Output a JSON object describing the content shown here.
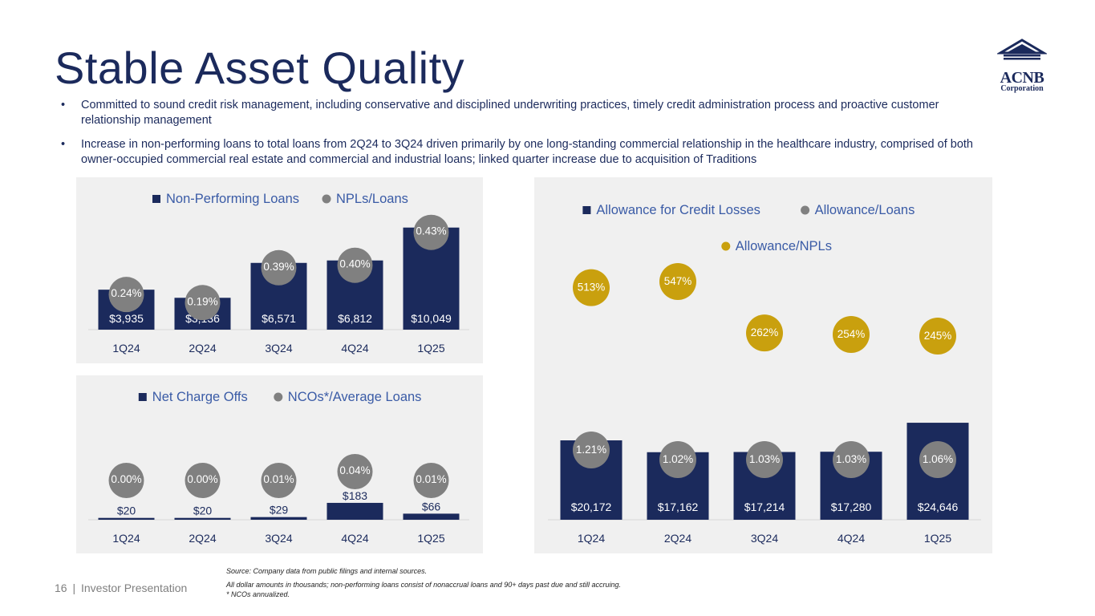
{
  "title": "Stable Asset Quality",
  "logo": {
    "name": "ACNB",
    "sub": "Corporation"
  },
  "bullets": [
    "Committed to sound credit risk management, including conservative and disciplined underwriting practices, timely credit administration process and proactive customer relationship management",
    "Increase in non-performing loans to total loans from 2Q24 to 3Q24 driven primarily by one long-standing commercial relationship in the healthcare industry, comprised of both owner-occupied commercial real estate and commercial and industrial loans; linked quarter increase due to acquisition of Traditions"
  ],
  "bullet_symbol": "•",
  "colors": {
    "navy": "#1b2a5c",
    "gray_dot": "#808080",
    "gold": "#c9a00e",
    "panel": "#f0f0f0",
    "label": "#3a5ba6"
  },
  "chart_data": [
    {
      "type": "bar",
      "name": "npl",
      "categories": [
        "1Q24",
        "2Q24",
        "3Q24",
        "4Q24",
        "1Q25"
      ],
      "series": [
        {
          "name": "Non-Performing Loans",
          "values": [
            3935,
            3136,
            6571,
            6812,
            10049
          ],
          "labels": [
            "$3,935",
            "$3,136",
            "$6,571",
            "$6,812",
            "$10,049"
          ]
        },
        {
          "name": "NPLs/Loans",
          "values": [
            0.24,
            0.19,
            0.39,
            0.4,
            0.43
          ],
          "labels": [
            "0.24%",
            "0.19%",
            "0.39%",
            "0.40%",
            "0.43%"
          ]
        }
      ],
      "legend": [
        "Non-Performing Loans",
        "NPLs/Loans"
      ],
      "ylim": [
        0,
        10500
      ]
    },
    {
      "type": "bar",
      "name": "nco",
      "categories": [
        "1Q24",
        "2Q24",
        "3Q24",
        "4Q24",
        "1Q25"
      ],
      "series": [
        {
          "name": "Net Charge Offs",
          "values": [
            20,
            20,
            29,
            183,
            66
          ],
          "labels": [
            "$20",
            "$20",
            "$29",
            "$183",
            "$66"
          ]
        },
        {
          "name": "NCOs*/Average Loans",
          "values": [
            0.0,
            0.0,
            0.01,
            0.04,
            0.01
          ],
          "labels": [
            "0.00%",
            "0.00%",
            "0.01%",
            "0.04%",
            "0.01%"
          ]
        }
      ],
      "legend": [
        "Net Charge Offs",
        "NCOs*/Average Loans"
      ],
      "ylim": [
        0,
        1000
      ]
    },
    {
      "type": "bar",
      "name": "acl",
      "categories": [
        "1Q24",
        "2Q24",
        "3Q24",
        "4Q24",
        "1Q25"
      ],
      "series": [
        {
          "name": "Allowance for Credit Losses",
          "values": [
            20172,
            17162,
            17214,
            17280,
            24646
          ],
          "labels": [
            "$20,172",
            "$17,162",
            "$17,214",
            "$17,280",
            "$24,646"
          ]
        },
        {
          "name": "Allowance/Loans",
          "values": [
            1.21,
            1.02,
            1.03,
            1.03,
            1.06
          ],
          "labels": [
            "1.21%",
            "1.02%",
            "1.03%",
            "1.03%",
            "1.06%"
          ]
        },
        {
          "name": "Allowance/NPLs",
          "values": [
            513,
            547,
            262,
            254,
            245
          ],
          "labels": [
            "513%",
            "547%",
            "262%",
            "254%",
            "245%"
          ]
        }
      ],
      "legend": [
        "Allowance for Credit Losses",
        "Allowance/Loans",
        "Allowance/NPLs"
      ],
      "ylim": [
        0,
        43000
      ]
    }
  ],
  "footer": {
    "page_number": "16",
    "separator": "|",
    "label": "Investor Presentation",
    "source": "Source: Company data from public filings and internal sources.",
    "note1": "All dollar amounts in thousands; non-performing loans consist of nonaccrual loans and 90+ days past due and still accruing.",
    "note2": "* NCOs annualized."
  }
}
